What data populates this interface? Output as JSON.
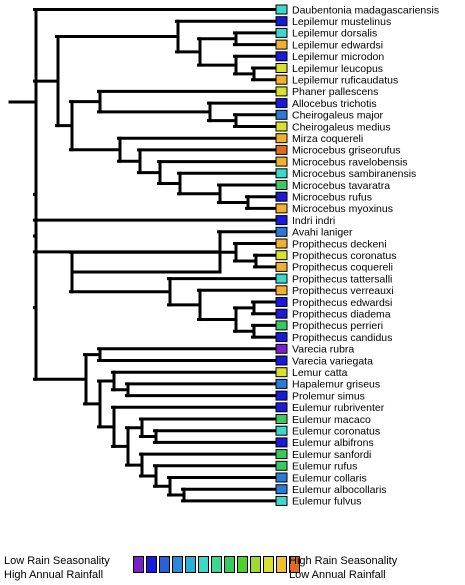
{
  "taxa": [
    {
      "name": "Daubentonia madagascariensis",
      "color": "#3cd8c8"
    },
    {
      "name": "Lepilemur mustelinus",
      "color": "#1a1ad8"
    },
    {
      "name": "Lepilemur dorsalis",
      "color": "#3cd8c8"
    },
    {
      "name": "Lepilemur edwardsi",
      "color": "#f0b030"
    },
    {
      "name": "Lepilemur microdon",
      "color": "#1a1ad8"
    },
    {
      "name": "Lepilemur leucopus",
      "color": "#d8e030"
    },
    {
      "name": "Lepilemur ruficaudatus",
      "color": "#f0b030"
    },
    {
      "name": "Phaner pallescens",
      "color": "#d8e030"
    },
    {
      "name": "Allocebus trichotis",
      "color": "#1a1ad8"
    },
    {
      "name": "Cheirogaleus major",
      "color": "#2a7ad8"
    },
    {
      "name": "Cheirogaleus medius",
      "color": "#d8e030"
    },
    {
      "name": "Mirza coquereli",
      "color": "#f0b030"
    },
    {
      "name": "Microcebus griseorufus",
      "color": "#e06a20"
    },
    {
      "name": "Microcebus ravelobensis",
      "color": "#f0b030"
    },
    {
      "name": "Microcebus sambiranensis",
      "color": "#3cd8c8"
    },
    {
      "name": "Microcebus tavaratra",
      "color": "#3ac860"
    },
    {
      "name": "Microcebus rufus",
      "color": "#1a1ad8"
    },
    {
      "name": "Microcebus myoxinus",
      "color": "#f0b030"
    },
    {
      "name": "Indri indri",
      "color": "#1a1ad8"
    },
    {
      "name": "Avahi laniger",
      "color": "#2a7ad8"
    },
    {
      "name": "Propithecus deckeni",
      "color": "#f0b030"
    },
    {
      "name": "Propithecus coronatus",
      "color": "#d8e030"
    },
    {
      "name": "Propithecus coquereli",
      "color": "#f0b030"
    },
    {
      "name": "Propithecus tattersalli",
      "color": "#3cd8c8"
    },
    {
      "name": "Propithecus verreauxi",
      "color": "#f0b030"
    },
    {
      "name": "Propithecus edwardsi",
      "color": "#1a1ad8"
    },
    {
      "name": "Propithecus diadema",
      "color": "#1a1ad8"
    },
    {
      "name": "Propithecus perrieri",
      "color": "#3ac860"
    },
    {
      "name": "Propithecus candidus",
      "color": "#1a1ad8"
    },
    {
      "name": "Varecia rubra",
      "color": "#7a20c8"
    },
    {
      "name": "Varecia variegata",
      "color": "#1a1ad8"
    },
    {
      "name": "Lemur catta",
      "color": "#d8e030"
    },
    {
      "name": "Hapalemur griseus",
      "color": "#2a7ad8"
    },
    {
      "name": "Prolemur simus",
      "color": "#1a1ad8"
    },
    {
      "name": "Eulemur rubriventer",
      "color": "#1a1ad8"
    },
    {
      "name": "Eulemur macaco",
      "color": "#3ac860"
    },
    {
      "name": "Eulemur coronatus",
      "color": "#3cd8c8"
    },
    {
      "name": "Eulemur albifrons",
      "color": "#1a1ad8"
    },
    {
      "name": "Eulemur sanfordi",
      "color": "#3ac860"
    },
    {
      "name": "Eulemur rufus",
      "color": "#3ac860"
    },
    {
      "name": "Eulemur collaris",
      "color": "#2a7ad8"
    },
    {
      "name": "Eulemur albocollaris",
      "color": "#2a7ad8"
    },
    {
      "name": "Eulemur fulvus",
      "color": "#3cd8c8"
    }
  ],
  "tree": [
    0,
    [
      [
        [
          1,
          [
            [
              2,
              3
            ],
            [
              4,
              [
                5,
                6
              ]
            ]
          ]
        ],
        [
          [
            7,
            [
              8,
              [
                9,
                10
              ]
            ]
          ],
          [
            11,
            [
              12,
              [
                13,
                [
                  14,
                  [
                    15,
                    [
                      16,
                      17
                    ]
                  ]
                ]
              ]
            ]
          ]
        ]
      ],
      [
        [
          18,
          [
            19,
            [
              [
                20,
                [
                  21,
                  22
                ]
              ],
              [
                23,
                [
                  24,
                  [
                    [
                      25,
                      26
                    ],
                    [
                      27,
                      28
                    ]
                  ]
                ]
              ]
            ]
          ]
        ],
        [
          [
            29,
            30
          ],
          [
            [
              31,
              [
                32,
                33
              ]
            ],
            [
              34,
              [
                [
                  35,
                  [
                    36,
                    37
                  ]
                ],
                [
                  38,
                  [
                    39,
                    [
                      40,
                      [
                        41,
                        42
                      ]
                    ]
                  ]
                ]
              ]
            ]
          ]
        ]
      ]
    ]
  ],
  "legend": {
    "left_line1": "Low Rain Seasonality",
    "left_line2": "High Annual Rainfall",
    "right_line1": "High Rain Seasonality",
    "right_line2": "Low Annual Rainfall",
    "swatches": [
      "#7a20c8",
      "#1a1ad8",
      "#2a60d8",
      "#2a8ad8",
      "#2ab0d8",
      "#3cd8c8",
      "#3ad890",
      "#3ac860",
      "#50d030",
      "#a0d830",
      "#d8e030",
      "#f0c030",
      "#e06a20"
    ]
  }
}
